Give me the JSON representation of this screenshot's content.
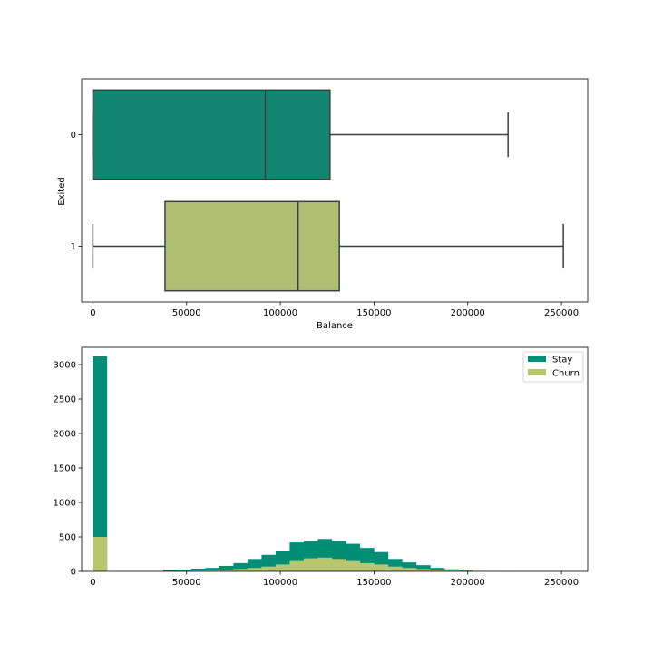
{
  "chart_data": [
    {
      "type": "boxplot",
      "orientation": "horizontal",
      "xlabel": "Balance",
      "ylabel": "Exited",
      "xlim": [
        -6000,
        264000
      ],
      "xticks": [
        0,
        50000,
        100000,
        150000,
        200000,
        250000
      ],
      "categories": [
        "0",
        "1"
      ],
      "boxes": [
        {
          "category": "0",
          "min": 0,
          "q1": 0,
          "median": 92000,
          "q3": 126500,
          "max": 221500,
          "color": "#138672"
        },
        {
          "category": "1",
          "min": 0,
          "q1": 38500,
          "median": 109500,
          "q3": 131500,
          "max": 251000,
          "color": "#afbe73"
        }
      ],
      "grid": false
    },
    {
      "type": "histogram",
      "xlim": [
        -6000,
        264000
      ],
      "ylim": [
        0,
        3250
      ],
      "xticks": [
        0,
        50000,
        100000,
        150000,
        200000,
        250000
      ],
      "yticks": [
        0,
        500,
        1000,
        1500,
        2000,
        2500,
        3000
      ],
      "bin_width": 7500,
      "legend_position": "top-right",
      "grid": false,
      "series": [
        {
          "name": "Stay",
          "color": "#008f76",
          "bins": [
            {
              "x0": 0,
              "count": 3120
            },
            {
              "x0": 37500,
              "count": 20
            },
            {
              "x0": 45000,
              "count": 25
            },
            {
              "x0": 52500,
              "count": 40
            },
            {
              "x0": 60000,
              "count": 50
            },
            {
              "x0": 67500,
              "count": 80
            },
            {
              "x0": 75000,
              "count": 120
            },
            {
              "x0": 82500,
              "count": 180
            },
            {
              "x0": 90000,
              "count": 240
            },
            {
              "x0": 97500,
              "count": 290
            },
            {
              "x0": 105000,
              "count": 420
            },
            {
              "x0": 112500,
              "count": 440
            },
            {
              "x0": 120000,
              "count": 470
            },
            {
              "x0": 127500,
              "count": 440
            },
            {
              "x0": 135000,
              "count": 400
            },
            {
              "x0": 142500,
              "count": 340
            },
            {
              "x0": 150000,
              "count": 280
            },
            {
              "x0": 157500,
              "count": 180
            },
            {
              "x0": 165000,
              "count": 130
            },
            {
              "x0": 172500,
              "count": 90
            },
            {
              "x0": 180000,
              "count": 50
            },
            {
              "x0": 187500,
              "count": 30
            },
            {
              "x0": 195000,
              "count": 15
            },
            {
              "x0": 202500,
              "count": 5
            },
            {
              "x0": 210000,
              "count": 2
            },
            {
              "x0": 217500,
              "count": 1
            }
          ]
        },
        {
          "name": "Churn",
          "color": "#b8c66e",
          "bins": [
            {
              "x0": 0,
              "count": 500
            },
            {
              "x0": 37500,
              "count": 5
            },
            {
              "x0": 45000,
              "count": 8
            },
            {
              "x0": 52500,
              "count": 12
            },
            {
              "x0": 60000,
              "count": 15
            },
            {
              "x0": 67500,
              "count": 20
            },
            {
              "x0": 75000,
              "count": 35
            },
            {
              "x0": 82500,
              "count": 50
            },
            {
              "x0": 90000,
              "count": 70
            },
            {
              "x0": 97500,
              "count": 100
            },
            {
              "x0": 105000,
              "count": 150
            },
            {
              "x0": 112500,
              "count": 190
            },
            {
              "x0": 120000,
              "count": 200
            },
            {
              "x0": 127500,
              "count": 180
            },
            {
              "x0": 135000,
              "count": 150
            },
            {
              "x0": 142500,
              "count": 120
            },
            {
              "x0": 150000,
              "count": 100
            },
            {
              "x0": 157500,
              "count": 70
            },
            {
              "x0": 165000,
              "count": 50
            },
            {
              "x0": 172500,
              "count": 35
            },
            {
              "x0": 180000,
              "count": 25
            },
            {
              "x0": 187500,
              "count": 15
            },
            {
              "x0": 195000,
              "count": 10
            },
            {
              "x0": 202500,
              "count": 5
            },
            {
              "x0": 210000,
              "count": 3
            },
            {
              "x0": 217500,
              "count": 2
            },
            {
              "x0": 225000,
              "count": 1
            },
            {
              "x0": 247500,
              "count": 1
            }
          ]
        }
      ]
    }
  ]
}
